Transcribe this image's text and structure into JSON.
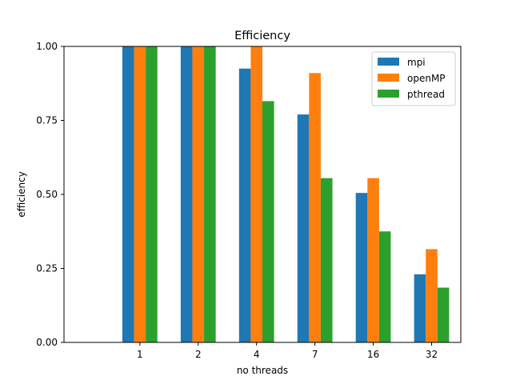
{
  "chart_data": {
    "type": "bar",
    "title": "Efficiency",
    "xlabel": "no threads",
    "ylabel": "efficiency",
    "categories": [
      "1",
      "2",
      "4",
      "7",
      "16",
      "32"
    ],
    "ylim": [
      0,
      1.0
    ],
    "yticks": [
      0.0,
      0.25,
      0.5,
      0.75,
      1.0
    ],
    "ytick_labels": [
      "0.00",
      "0.25",
      "0.50",
      "0.75",
      "1.00"
    ],
    "grid": false,
    "legend_position": "top-right",
    "series": [
      {
        "name": "mpi",
        "color": "#1f77b4",
        "values": [
          1.0,
          1.0,
          0.925,
          0.77,
          0.505,
          0.23
        ]
      },
      {
        "name": "openMP",
        "color": "#ff7f0e",
        "values": [
          1.0,
          1.0,
          1.0,
          0.91,
          0.555,
          0.315
        ]
      },
      {
        "name": "pthread",
        "color": "#2ca02c",
        "values": [
          1.0,
          1.0,
          0.815,
          0.555,
          0.375,
          0.185
        ]
      }
    ]
  }
}
